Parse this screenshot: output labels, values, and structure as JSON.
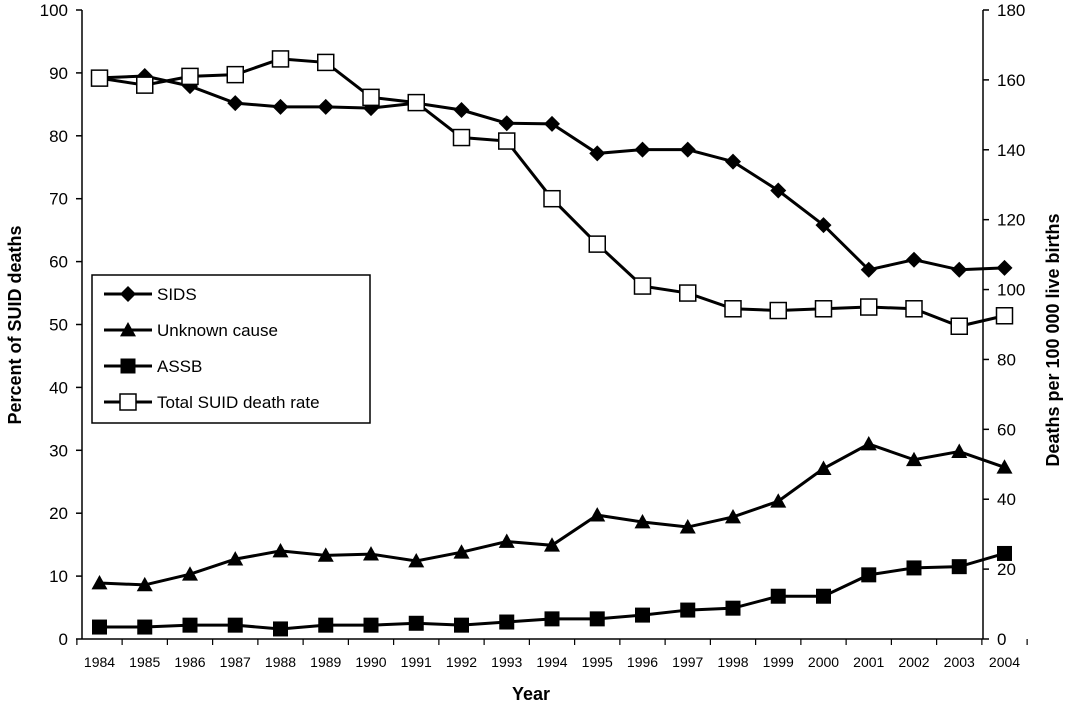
{
  "chart_data": {
    "type": "line",
    "title": "",
    "xlabel": "Year",
    "ylabel_left": "Percent of SUID deaths",
    "ylabel_right": "Deaths per 100 000 live births",
    "ylim_left": [
      0,
      100
    ],
    "ylim_right": [
      0,
      180
    ],
    "yticks_left": [
      "0",
      "10",
      "20",
      "30",
      "40",
      "50",
      "60",
      "70",
      "80",
      "90",
      "100"
    ],
    "yticks_right": [
      "0",
      "20",
      "40",
      "60",
      "80",
      "100",
      "120",
      "140",
      "160",
      "180"
    ],
    "x": [
      "1984",
      "1985",
      "1986",
      "1987",
      "1988",
      "1989",
      "1990",
      "1991",
      "1992",
      "1993",
      "1994",
      "1995",
      "1996",
      "1997",
      "1998",
      "1999",
      "2000",
      "2001",
      "2002",
      "2003",
      "2004"
    ],
    "grid": false,
    "legend_position": "middle-left",
    "series": [
      {
        "name": "SIDS",
        "axis": "left",
        "marker": "diamond",
        "values": [
          89.2,
          89.5,
          87.9,
          85.2,
          84.6,
          84.6,
          84.4,
          85.2,
          84.1,
          82.0,
          81.9,
          77.2,
          77.8,
          77.8,
          75.9,
          71.3,
          65.8,
          58.7,
          60.3,
          58.7,
          59.0
        ]
      },
      {
        "name": "Unknown cause",
        "axis": "left",
        "marker": "triangle",
        "values": [
          8.9,
          8.6,
          10.3,
          12.7,
          14.0,
          13.3,
          13.5,
          12.4,
          13.8,
          15.5,
          14.9,
          19.7,
          18.6,
          17.8,
          19.4,
          21.9,
          27.1,
          31.0,
          28.5,
          29.8,
          27.3
        ]
      },
      {
        "name": "ASSB",
        "axis": "left",
        "marker": "square",
        "values": [
          1.9,
          1.9,
          2.2,
          2.2,
          1.6,
          2.2,
          2.2,
          2.5,
          2.2,
          2.7,
          3.2,
          3.2,
          3.8,
          4.6,
          4.9,
          6.8,
          6.8,
          10.2,
          11.3,
          11.5,
          13.6
        ]
      },
      {
        "name": "Total SUID death rate",
        "axis": "right",
        "marker": "open-square",
        "values": [
          160.5,
          158.5,
          161.0,
          161.5,
          166.0,
          165.0,
          155.0,
          153.5,
          143.5,
          142.5,
          126.0,
          113.0,
          101.0,
          99.0,
          94.5,
          94.0,
          94.5,
          95.0,
          94.5,
          89.5,
          92.5
        ]
      }
    ]
  }
}
